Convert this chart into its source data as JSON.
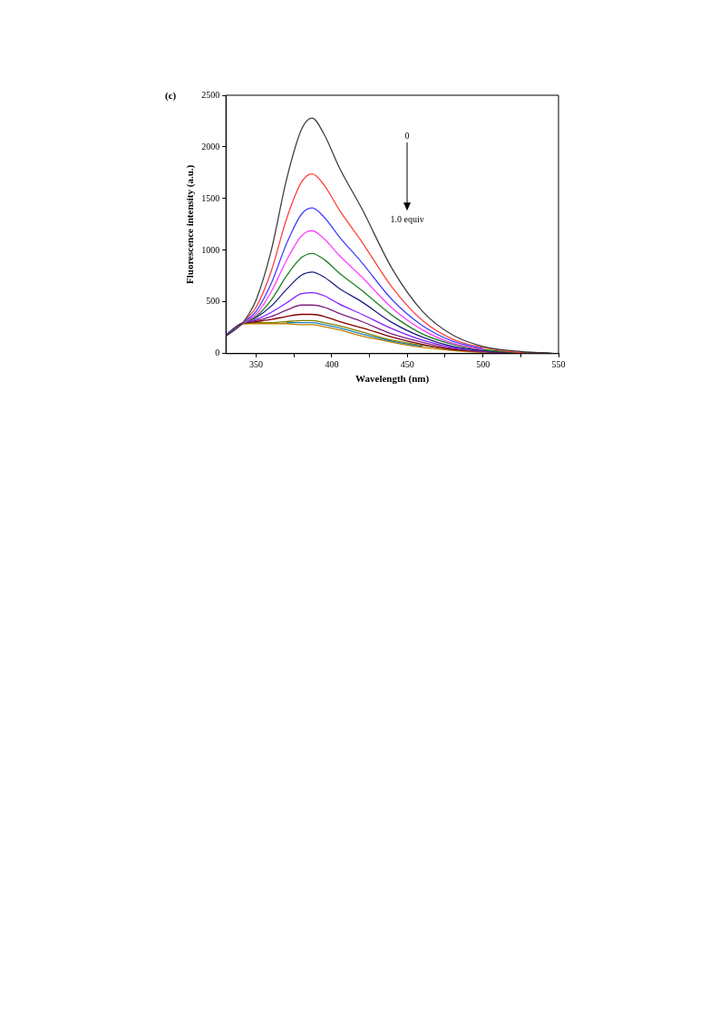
{
  "chart_data": {
    "type": "line",
    "title": "(c)",
    "xlabel": "Wavelength (nm)",
    "ylabel": "Fluorescence intensity (a.u.)",
    "x": [
      330,
      340,
      345,
      350,
      360,
      370,
      380,
      387,
      395,
      405,
      420,
      440,
      460,
      480,
      500,
      525,
      550
    ],
    "series": [
      {
        "color": "#404040",
        "values": [
          170,
          280,
          380,
          520,
          1000,
          1680,
          2170,
          2280,
          2120,
          1800,
          1400,
          820,
          410,
          180,
          70,
          20,
          0
        ]
      },
      {
        "color": "#ff4040",
        "values": [
          170,
          280,
          360,
          450,
          800,
          1300,
          1660,
          1740,
          1630,
          1390,
          1080,
          640,
          320,
          140,
          60,
          10,
          0
        ]
      },
      {
        "color": "#4040ff",
        "values": [
          180,
          280,
          340,
          410,
          680,
          1060,
          1350,
          1410,
          1320,
          1130,
          880,
          520,
          270,
          120,
          50,
          null,
          null
        ]
      },
      {
        "color": "#ff40ff",
        "values": [
          null,
          280,
          330,
          380,
          600,
          900,
          1140,
          1190,
          1110,
          950,
          740,
          440,
          230,
          100,
          40,
          null,
          null
        ]
      },
      {
        "color": "#208020",
        "values": [
          180,
          280,
          320,
          360,
          520,
          750,
          930,
          970,
          910,
          780,
          610,
          370,
          190,
          90,
          40,
          10,
          0
        ]
      },
      {
        "color": "#202080",
        "values": [
          180,
          290,
          320,
          350,
          460,
          620,
          760,
          790,
          740,
          630,
          500,
          300,
          160,
          70,
          30,
          10,
          0
        ]
      },
      {
        "color": "#8020ff",
        "values": [
          180,
          290,
          310,
          330,
          400,
          490,
          580,
          590,
          560,
          480,
          380,
          240,
          130,
          60,
          30,
          null,
          null
        ]
      },
      {
        "color": "#802080",
        "values": [
          180,
          290,
          310,
          320,
          360,
          420,
          470,
          470,
          450,
          390,
          310,
          190,
          110,
          50,
          20,
          10,
          0
        ]
      },
      {
        "color": "#800000",
        "values": [
          180,
          290,
          300,
          310,
          330,
          360,
          380,
          380,
          360,
          310,
          250,
          160,
          90,
          40,
          20,
          10,
          0
        ]
      },
      {
        "color": "#808000",
        "values": [
          180,
          290,
          300,
          300,
          300,
          310,
          320,
          320,
          300,
          270,
          210,
          130,
          80,
          40,
          20,
          10,
          0
        ]
      },
      {
        "color": "#2080c0",
        "values": [
          null,
          null,
          null,
          null,
          null,
          300,
          300,
          300,
          280,
          250,
          190,
          120,
          70,
          null,
          null,
          null,
          null
        ]
      },
      {
        "color": "#c08000",
        "values": [
          180,
          280,
          290,
          290,
          290,
          290,
          280,
          280,
          260,
          230,
          170,
          110,
          60,
          30,
          10,
          null,
          null
        ]
      }
    ],
    "xlim": [
      330,
      550
    ],
    "xticks": [
      350,
      {
        "value": 375,
        "label": null
      },
      400,
      {
        "value": 425,
        "label": null
      },
      450,
      {
        "value": 475,
        "label": null
      },
      500,
      {
        "value": 525,
        "label": null
      },
      550
    ],
    "ylim": [
      0,
      2500
    ],
    "yticks": [
      0,
      500,
      1000,
      1500,
      2000,
      2500
    ],
    "annotations": [
      "0",
      "1.0 equiv"
    ],
    "grid": false,
    "legend": false,
    "marker": "none",
    "line_style": "solid"
  }
}
